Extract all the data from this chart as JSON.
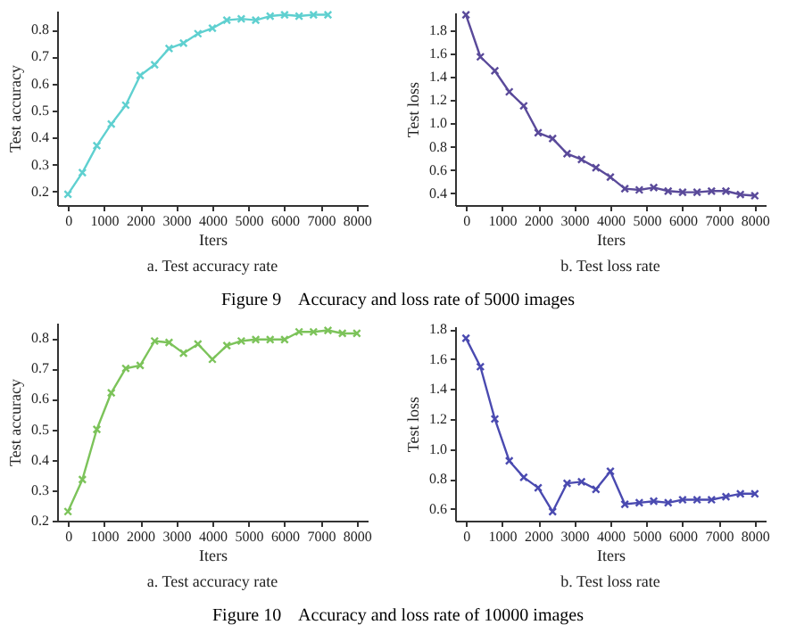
{
  "chart_data": [
    {
      "type": "line",
      "title": "a. Test accuracy rate",
      "xlabel": "Iters",
      "ylabel": "Test accuracy",
      "annotations": [
        "Figure 9    Accuracy and loss rate of 5000 images"
      ],
      "marker": "cross",
      "x": [
        0,
        400,
        800,
        1200,
        1600,
        2000,
        2400,
        2800,
        3200,
        3600,
        4000,
        4400,
        4800,
        5200,
        5600,
        6000,
        6400,
        6800,
        7200
      ],
      "series": [
        {
          "color": "#5fd0d0",
          "values": [
            0.19,
            0.27,
            0.37,
            0.45,
            0.52,
            0.63,
            0.67,
            0.73,
            0.75,
            0.785,
            0.805,
            0.835,
            0.84,
            0.835,
            0.85,
            0.855,
            0.85,
            0.855,
            0.855
          ]
        }
      ],
      "xlim": [
        -300,
        8300
      ],
      "xticks": [
        0,
        1000,
        2000,
        3000,
        4000,
        5000,
        6000,
        7000,
        8000
      ],
      "ylim": [
        0.15,
        0.87
      ],
      "yticks": [
        0.2,
        0.3,
        0.4,
        0.5,
        0.6,
        0.7,
        0.8
      ]
    },
    {
      "type": "line",
      "title": "b. Test loss rate",
      "xlabel": "Iters",
      "ylabel": "Test loss",
      "marker": "cross",
      "x": [
        0,
        400,
        800,
        1200,
        1600,
        2000,
        2400,
        2800,
        3200,
        3600,
        4000,
        4400,
        4800,
        5200,
        5600,
        6000,
        6400,
        6800,
        7200,
        7600,
        8000
      ],
      "series": [
        {
          "color": "#5a4a9a",
          "values": [
            1.93,
            1.57,
            1.45,
            1.27,
            1.15,
            0.92,
            0.87,
            0.74,
            0.69,
            0.62,
            0.54,
            0.44,
            0.43,
            0.45,
            0.42,
            0.41,
            0.41,
            0.42,
            0.42,
            0.39,
            0.38
          ]
        }
      ],
      "xlim": [
        -300,
        8300
      ],
      "xticks": [
        0,
        1000,
        2000,
        3000,
        4000,
        5000,
        6000,
        7000,
        8000
      ],
      "ylim": [
        0.3,
        1.95
      ],
      "yticks": [
        {
          "value": 0.4,
          "label": "0.4"
        },
        {
          "value": 0.6,
          "label": "0.6"
        },
        {
          "value": 0.8,
          "label": "0.8"
        },
        {
          "value": 1.0,
          "label": "1.0"
        },
        {
          "value": 1.2,
          "label": "1.2"
        },
        {
          "value": 1.4,
          "label": "1.4"
        },
        {
          "value": 1.6,
          "label": "1.6"
        },
        {
          "value": 1.8,
          "label": "1.8"
        }
      ]
    },
    {
      "type": "line",
      "title": "a. Test accuracy rate",
      "xlabel": "Iters",
      "ylabel": "Test accuracy",
      "annotations": [
        "Figure 10    Accuracy and loss rate of 10000 images"
      ],
      "marker": "cross",
      "x": [
        0,
        400,
        800,
        1200,
        1600,
        2000,
        2400,
        2800,
        3200,
        3600,
        4000,
        4400,
        4800,
        5200,
        5600,
        6000,
        6400,
        6800,
        7200,
        7600,
        8000
      ],
      "series": [
        {
          "color": "#7cc35a",
          "values": [
            0.23,
            0.335,
            0.5,
            0.62,
            0.7,
            0.71,
            0.79,
            0.785,
            0.75,
            0.78,
            0.73,
            0.775,
            0.79,
            0.795,
            0.795,
            0.795,
            0.82,
            0.82,
            0.825,
            0.815,
            0.815
          ]
        }
      ],
      "xlim": [
        -300,
        8300
      ],
      "xticks": [
        0,
        1000,
        2000,
        3000,
        4000,
        5000,
        6000,
        7000,
        8000
      ],
      "ylim": [
        0.2,
        0.85
      ],
      "yticks": [
        0.2,
        0.3,
        0.4,
        0.5,
        0.6,
        0.7,
        0.8
      ]
    },
    {
      "type": "line",
      "title": "b. Test loss rate",
      "xlabel": "Iters",
      "ylabel": "Test loss",
      "marker": "cross",
      "x": [
        0,
        400,
        800,
        1200,
        1600,
        2000,
        2400,
        2800,
        3200,
        3600,
        4000,
        4400,
        4800,
        5200,
        5600,
        6000,
        6400,
        6800,
        7200,
        7600,
        8000
      ],
      "series": [
        {
          "color": "#4a4ab0",
          "values": [
            1.74,
            1.55,
            1.2,
            0.92,
            0.81,
            0.74,
            0.58,
            0.77,
            0.78,
            0.73,
            0.85,
            0.63,
            0.64,
            0.65,
            0.64,
            0.66,
            0.66,
            0.66,
            0.68,
            0.7,
            0.7
          ]
        }
      ],
      "xlim": [
        -300,
        8300
      ],
      "xticks": [
        0,
        1000,
        2000,
        3000,
        4000,
        5000,
        6000,
        7000,
        8000
      ],
      "ylim": [
        0.52,
        1.82
      ],
      "yticks": [
        {
          "value": 0.6,
          "label": "0.6"
        },
        {
          "value": 0.8,
          "label": "0.8"
        },
        {
          "value": 1.0,
          "label": "1.0"
        },
        {
          "value": 1.2,
          "label": "1.2"
        },
        {
          "value": 1.4,
          "label": "1.4"
        },
        {
          "value": 1.6,
          "label": "1.6"
        },
        {
          "value": 1.8,
          "label": "1.8"
        }
      ]
    }
  ]
}
